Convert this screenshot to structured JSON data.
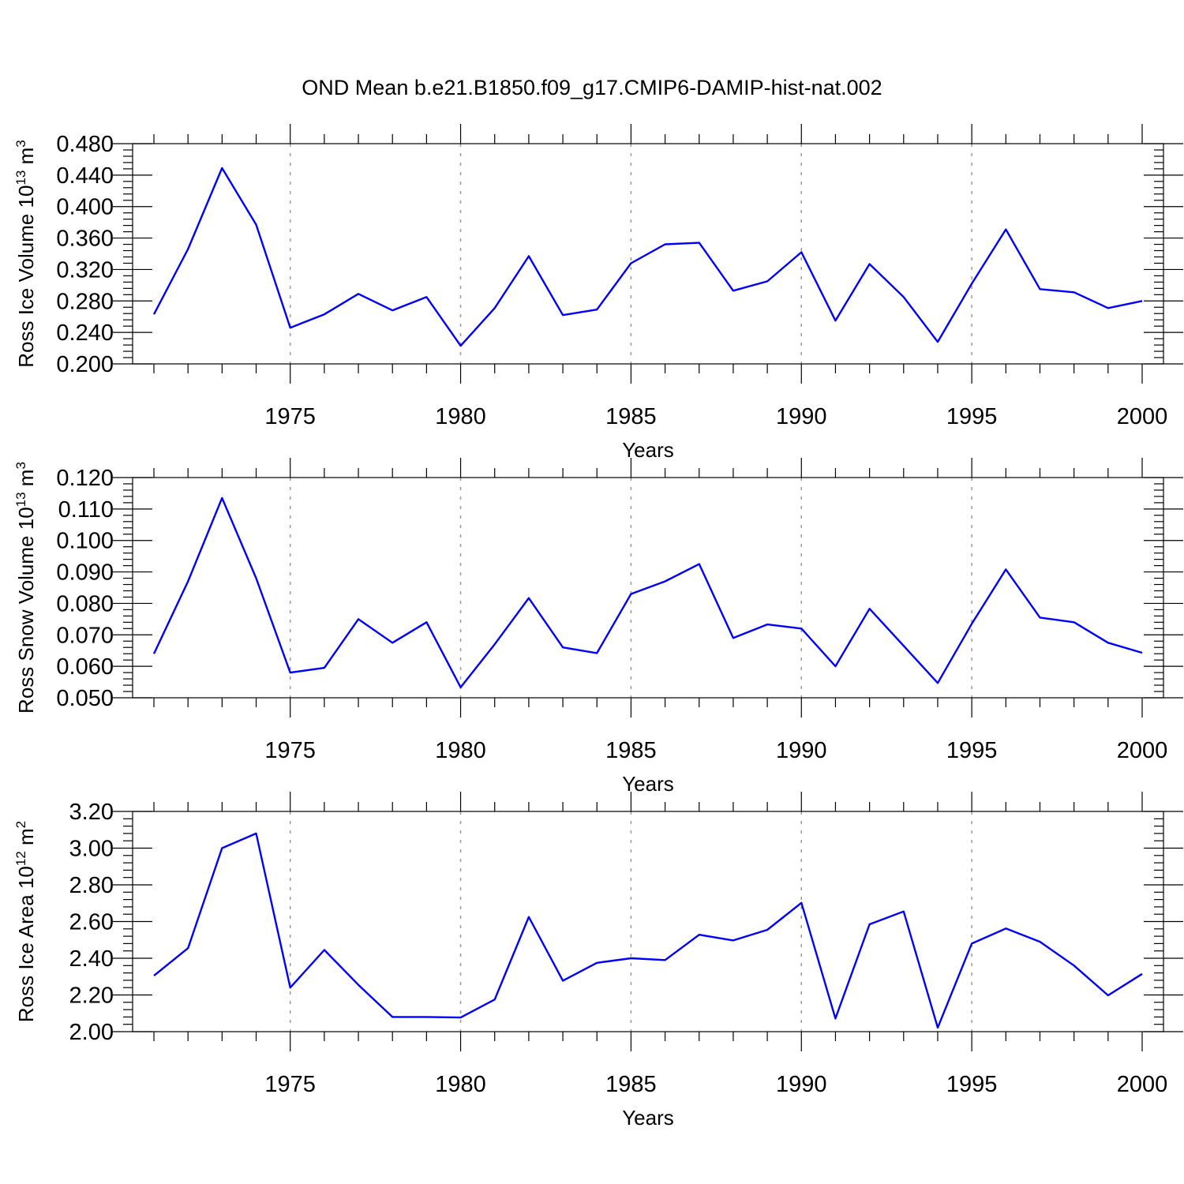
{
  "chart_data": [
    {
      "type": "line",
      "title": "OND Mean b.e21.B1850.f09_g17.CMIP6-DAMIP-hist-nat.002",
      "xlabel": "Years",
      "ylabel": "Ross Ice Volume 10",
      "ylabel_exp": "13",
      "ylabel_unit": " m",
      "ylabel_unit_exp": "3",
      "xlim": [
        1971,
        2000
      ],
      "ylim": [
        0.2,
        0.48
      ],
      "y_major_step": 0.04,
      "y_minor_step": 0.008,
      "y_decimals": 3,
      "x_ticks": [
        "1975",
        "1980",
        "1985",
        "1990",
        "1995",
        "2000"
      ],
      "grid": "dashed vertical at every 5 years",
      "series": [
        {
          "name": "Ross Ice Volume",
          "color": "#0000ff",
          "x": [
            1971,
            1972,
            1973,
            1974,
            1975,
            1976,
            1977,
            1978,
            1979,
            1980,
            1981,
            1982,
            1983,
            1984,
            1985,
            1986,
            1987,
            1988,
            1989,
            1990,
            1991,
            1992,
            1993,
            1994,
            1995,
            1996,
            1997,
            1998,
            1999,
            2000
          ],
          "values": [
            0.263,
            0.346,
            0.449,
            0.377,
            0.246,
            0.263,
            0.289,
            0.268,
            0.285,
            0.223,
            0.271,
            0.337,
            0.262,
            0.269,
            0.328,
            0.352,
            0.354,
            0.293,
            0.305,
            0.342,
            0.255,
            0.327,
            0.285,
            0.228,
            0.302,
            0.371,
            0.295,
            0.291,
            0.271,
            0.28
          ]
        }
      ]
    },
    {
      "type": "line",
      "xlabel": "Years",
      "ylabel": "Ross Snow Volume 10",
      "ylabel_exp": "13",
      "ylabel_unit": " m",
      "ylabel_unit_exp": "3",
      "xlim": [
        1971,
        2000
      ],
      "ylim": [
        0.05,
        0.12
      ],
      "y_major_step": 0.01,
      "y_minor_step": 0.002,
      "y_decimals": 3,
      "x_ticks": [
        "1975",
        "1980",
        "1985",
        "1990",
        "1995",
        "2000"
      ],
      "grid": "dashed vertical at every 5 years",
      "series": [
        {
          "name": "Ross Snow Volume",
          "color": "#0000ff",
          "x": [
            1971,
            1972,
            1973,
            1974,
            1975,
            1976,
            1977,
            1978,
            1979,
            1980,
            1981,
            1982,
            1983,
            1984,
            1985,
            1986,
            1987,
            1988,
            1989,
            1990,
            1991,
            1992,
            1993,
            1994,
            1995,
            1996,
            1997,
            1998,
            1999,
            2000
          ],
          "values": [
            0.064,
            0.087,
            0.1135,
            0.088,
            0.058,
            0.0595,
            0.075,
            0.0675,
            0.074,
            0.0533,
            0.067,
            0.0817,
            0.066,
            0.0642,
            0.083,
            0.087,
            0.0925,
            0.069,
            0.0733,
            0.072,
            0.06,
            0.0783,
            0.0665,
            0.0547,
            0.0735,
            0.0908,
            0.0755,
            0.074,
            0.0675,
            0.0643
          ]
        }
      ]
    },
    {
      "type": "line",
      "xlabel": "Years",
      "ylabel": "Ross Ice Area 10",
      "ylabel_exp": "12",
      "ylabel_unit": " m",
      "ylabel_unit_exp": "2",
      "xlim": [
        1971,
        2000
      ],
      "ylim": [
        2.0,
        3.2
      ],
      "y_major_step": 0.2,
      "y_minor_step": 0.04,
      "y_decimals": 2,
      "x_ticks": [
        "1975",
        "1980",
        "1985",
        "1990",
        "1995",
        "2000"
      ],
      "grid": "dashed vertical at every 5 years",
      "series": [
        {
          "name": "Ross Ice Area",
          "color": "#0000ff",
          "x": [
            1971,
            1972,
            1973,
            1974,
            1975,
            1976,
            1977,
            1978,
            1979,
            1980,
            1981,
            1982,
            1983,
            1984,
            1985,
            1986,
            1987,
            1988,
            1989,
            1990,
            1991,
            1992,
            1993,
            1994,
            1995,
            1996,
            1997,
            1998,
            1999,
            2000
          ],
          "values": [
            2.305,
            2.455,
            3.0,
            3.08,
            2.24,
            2.445,
            2.255,
            2.08,
            2.08,
            2.077,
            2.175,
            2.625,
            2.278,
            2.375,
            2.4,
            2.39,
            2.528,
            2.497,
            2.555,
            2.702,
            2.072,
            2.585,
            2.655,
            2.022,
            2.48,
            2.562,
            2.49,
            2.36,
            2.198,
            2.315
          ]
        }
      ]
    }
  ]
}
